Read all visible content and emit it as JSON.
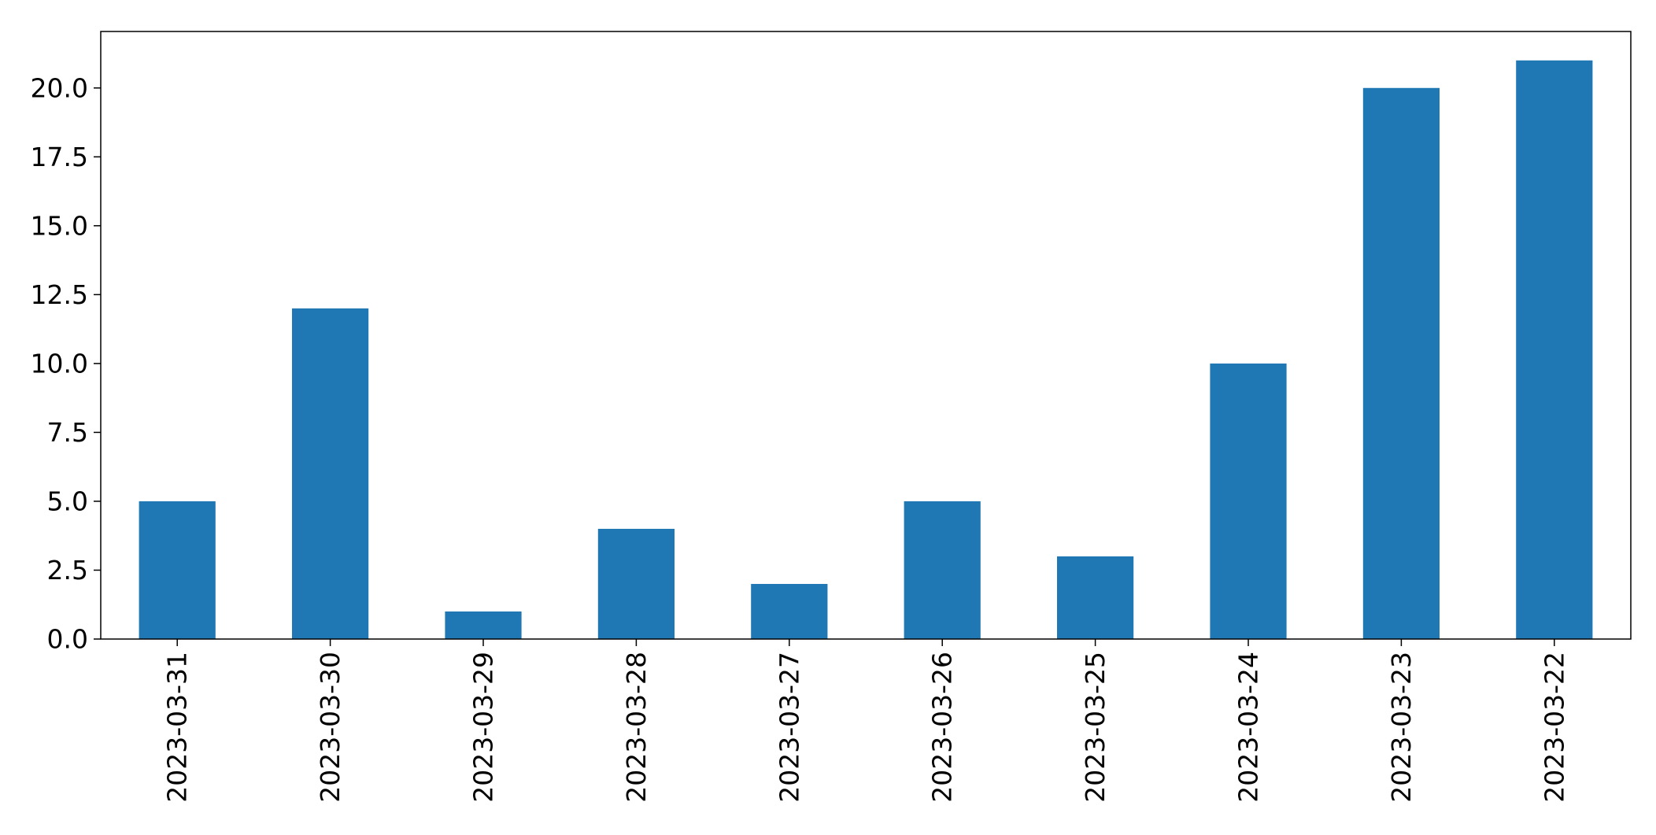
{
  "chart_data": {
    "type": "bar",
    "title": "",
    "xlabel": "",
    "ylabel": "",
    "categories": [
      "2023-03-31",
      "2023-03-30",
      "2023-03-29",
      "2023-03-28",
      "2023-03-27",
      "2023-03-26",
      "2023-03-25",
      "2023-03-24",
      "2023-03-23",
      "2023-03-22"
    ],
    "values": [
      5,
      12,
      1,
      4,
      2,
      5,
      3,
      10,
      20,
      21
    ],
    "ylim": [
      0,
      22.05
    ],
    "yticks": [
      0,
      2.5,
      5,
      7.5,
      10,
      12.5,
      15,
      17.5,
      20
    ],
    "ytick_labels": [
      "0.0",
      "2.5",
      "5.0",
      "7.5",
      "10.0",
      "12.5",
      "15.0",
      "17.5",
      "20.0"
    ],
    "grid": false,
    "legend": "none",
    "bar_color": "#1f77b4",
    "axis_color": "#000000",
    "xtick_rotation": "vertical"
  }
}
